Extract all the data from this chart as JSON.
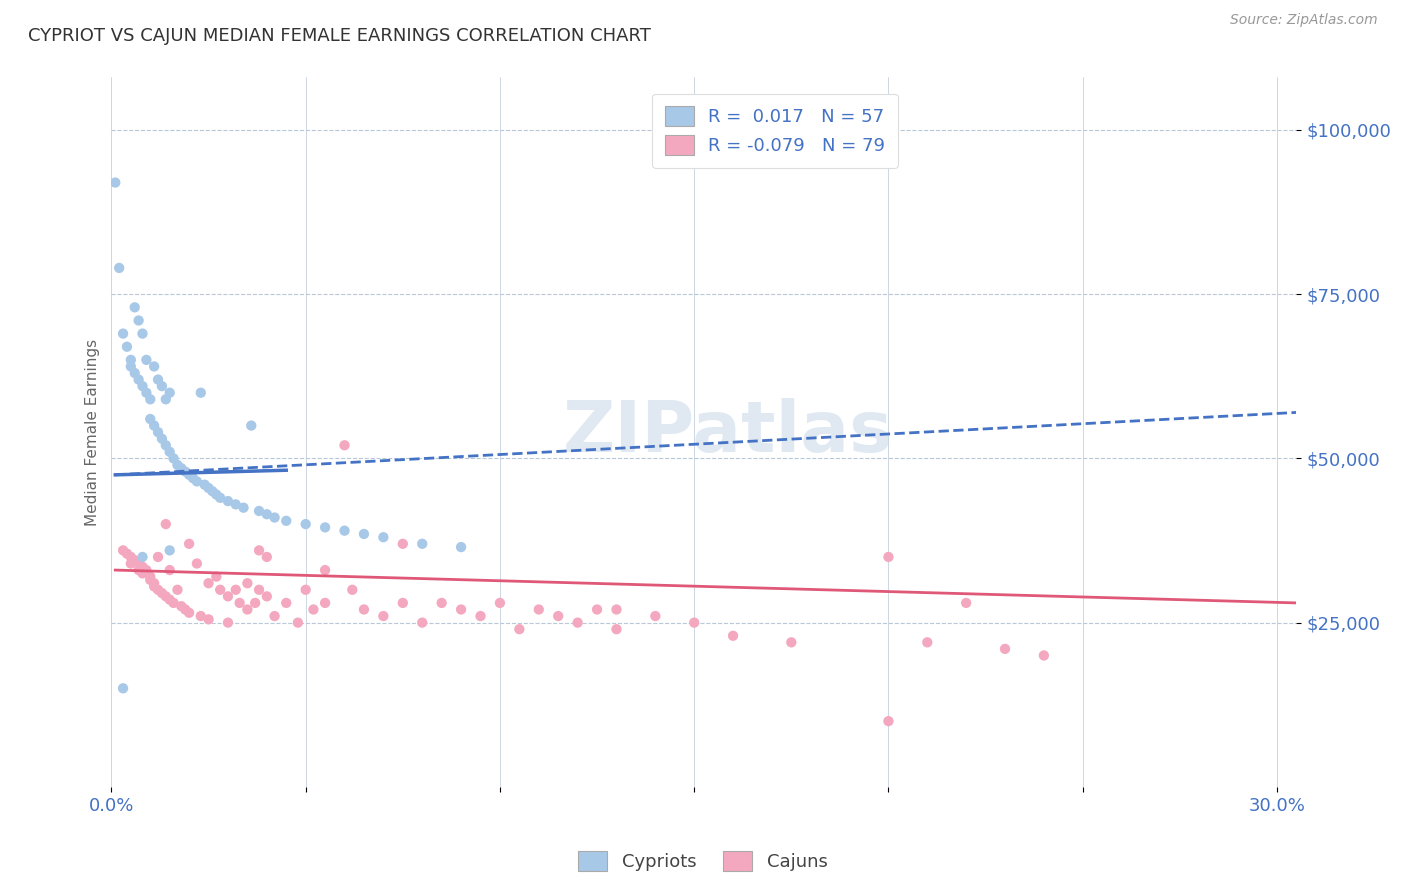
{
  "title": "CYPRIOT VS CAJUN MEDIAN FEMALE EARNINGS CORRELATION CHART",
  "source_text": "Source: ZipAtlas.com",
  "ylabel": "Median Female Earnings",
  "xlim": [
    0.0,
    0.305
  ],
  "ylim": [
    0,
    108000
  ],
  "yticks": [
    25000,
    50000,
    75000,
    100000
  ],
  "ytick_labels": [
    "$25,000",
    "$50,000",
    "$75,000",
    "$100,000"
  ],
  "xticks": [
    0.0,
    0.05,
    0.1,
    0.15,
    0.2,
    0.25,
    0.3
  ],
  "xtick_labels": [
    "0.0%",
    "",
    "",
    "",
    "",
    "",
    "30.0%"
  ],
  "cypriot_color": "#a8c8e8",
  "cajun_color": "#f4a8c0",
  "cypriot_line_color": "#4472c4",
  "cajun_line_color": "#e05878",
  "grid_color": "#b8c8d8",
  "axis_label_color": "#4472c4",
  "watermark": "ZIPatlas",
  "cypriot_R": 0.017,
  "cypriot_N": 57,
  "cajun_R": -0.079,
  "cajun_N": 79,
  "cypriot_scatter_x": [
    0.001,
    0.002,
    0.003,
    0.004,
    0.005,
    0.005,
    0.006,
    0.006,
    0.007,
    0.007,
    0.008,
    0.008,
    0.009,
    0.009,
    0.01,
    0.01,
    0.011,
    0.011,
    0.012,
    0.012,
    0.013,
    0.013,
    0.014,
    0.014,
    0.015,
    0.015,
    0.016,
    0.017,
    0.018,
    0.019,
    0.02,
    0.021,
    0.022,
    0.023,
    0.024,
    0.025,
    0.026,
    0.027,
    0.028,
    0.03,
    0.032,
    0.034,
    0.036,
    0.038,
    0.04,
    0.042,
    0.045,
    0.05,
    0.055,
    0.06,
    0.065,
    0.07,
    0.08,
    0.09,
    0.003,
    0.008,
    0.015
  ],
  "cypriot_scatter_y": [
    92000,
    79000,
    69000,
    67000,
    65000,
    64000,
    63000,
    73000,
    71000,
    62000,
    61000,
    69000,
    60000,
    65000,
    59000,
    56000,
    55000,
    64000,
    54000,
    62000,
    53000,
    61000,
    52000,
    59000,
    51000,
    60000,
    50000,
    49000,
    48500,
    48000,
    47500,
    47000,
    46500,
    60000,
    46000,
    45500,
    45000,
    44500,
    44000,
    43500,
    43000,
    42500,
    55000,
    42000,
    41500,
    41000,
    40500,
    40000,
    39500,
    39000,
    38500,
    38000,
    37000,
    36500,
    15000,
    35000,
    36000
  ],
  "cajun_scatter_x": [
    0.003,
    0.004,
    0.005,
    0.005,
    0.006,
    0.007,
    0.007,
    0.008,
    0.008,
    0.009,
    0.01,
    0.01,
    0.011,
    0.011,
    0.012,
    0.012,
    0.013,
    0.014,
    0.015,
    0.015,
    0.016,
    0.017,
    0.018,
    0.019,
    0.02,
    0.02,
    0.022,
    0.023,
    0.025,
    0.025,
    0.027,
    0.028,
    0.03,
    0.03,
    0.032,
    0.033,
    0.035,
    0.035,
    0.037,
    0.038,
    0.04,
    0.04,
    0.042,
    0.045,
    0.048,
    0.05,
    0.052,
    0.055,
    0.06,
    0.062,
    0.065,
    0.07,
    0.075,
    0.08,
    0.085,
    0.09,
    0.095,
    0.1,
    0.105,
    0.11,
    0.115,
    0.12,
    0.125,
    0.13,
    0.14,
    0.15,
    0.16,
    0.175,
    0.2,
    0.21,
    0.22,
    0.23,
    0.24,
    0.038,
    0.055,
    0.075,
    0.13,
    0.2,
    0.014
  ],
  "cajun_scatter_y": [
    36000,
    35500,
    35000,
    34000,
    34500,
    34000,
    33000,
    33500,
    32500,
    33000,
    32000,
    31500,
    31000,
    30500,
    30000,
    35000,
    29500,
    29000,
    28500,
    33000,
    28000,
    30000,
    27500,
    27000,
    26500,
    37000,
    34000,
    26000,
    25500,
    31000,
    32000,
    30000,
    29000,
    25000,
    30000,
    28000,
    27000,
    31000,
    28000,
    30000,
    29000,
    35000,
    26000,
    28000,
    25000,
    30000,
    27000,
    28000,
    52000,
    30000,
    27000,
    26000,
    28000,
    25000,
    28000,
    27000,
    26000,
    28000,
    24000,
    27000,
    26000,
    25000,
    27000,
    24000,
    26000,
    25000,
    23000,
    22000,
    35000,
    22000,
    28000,
    21000,
    20000,
    36000,
    33000,
    37000,
    27000,
    10000,
    40000
  ],
  "cyp_trend_x0": 0.001,
  "cyp_trend_x1": 0.305,
  "cyp_trend_y0": 47500,
  "cyp_trend_y1": 57000,
  "caj_trend_x0": 0.001,
  "caj_trend_x1": 0.305,
  "caj_trend_y0": 33000,
  "caj_trend_y1": 28000
}
